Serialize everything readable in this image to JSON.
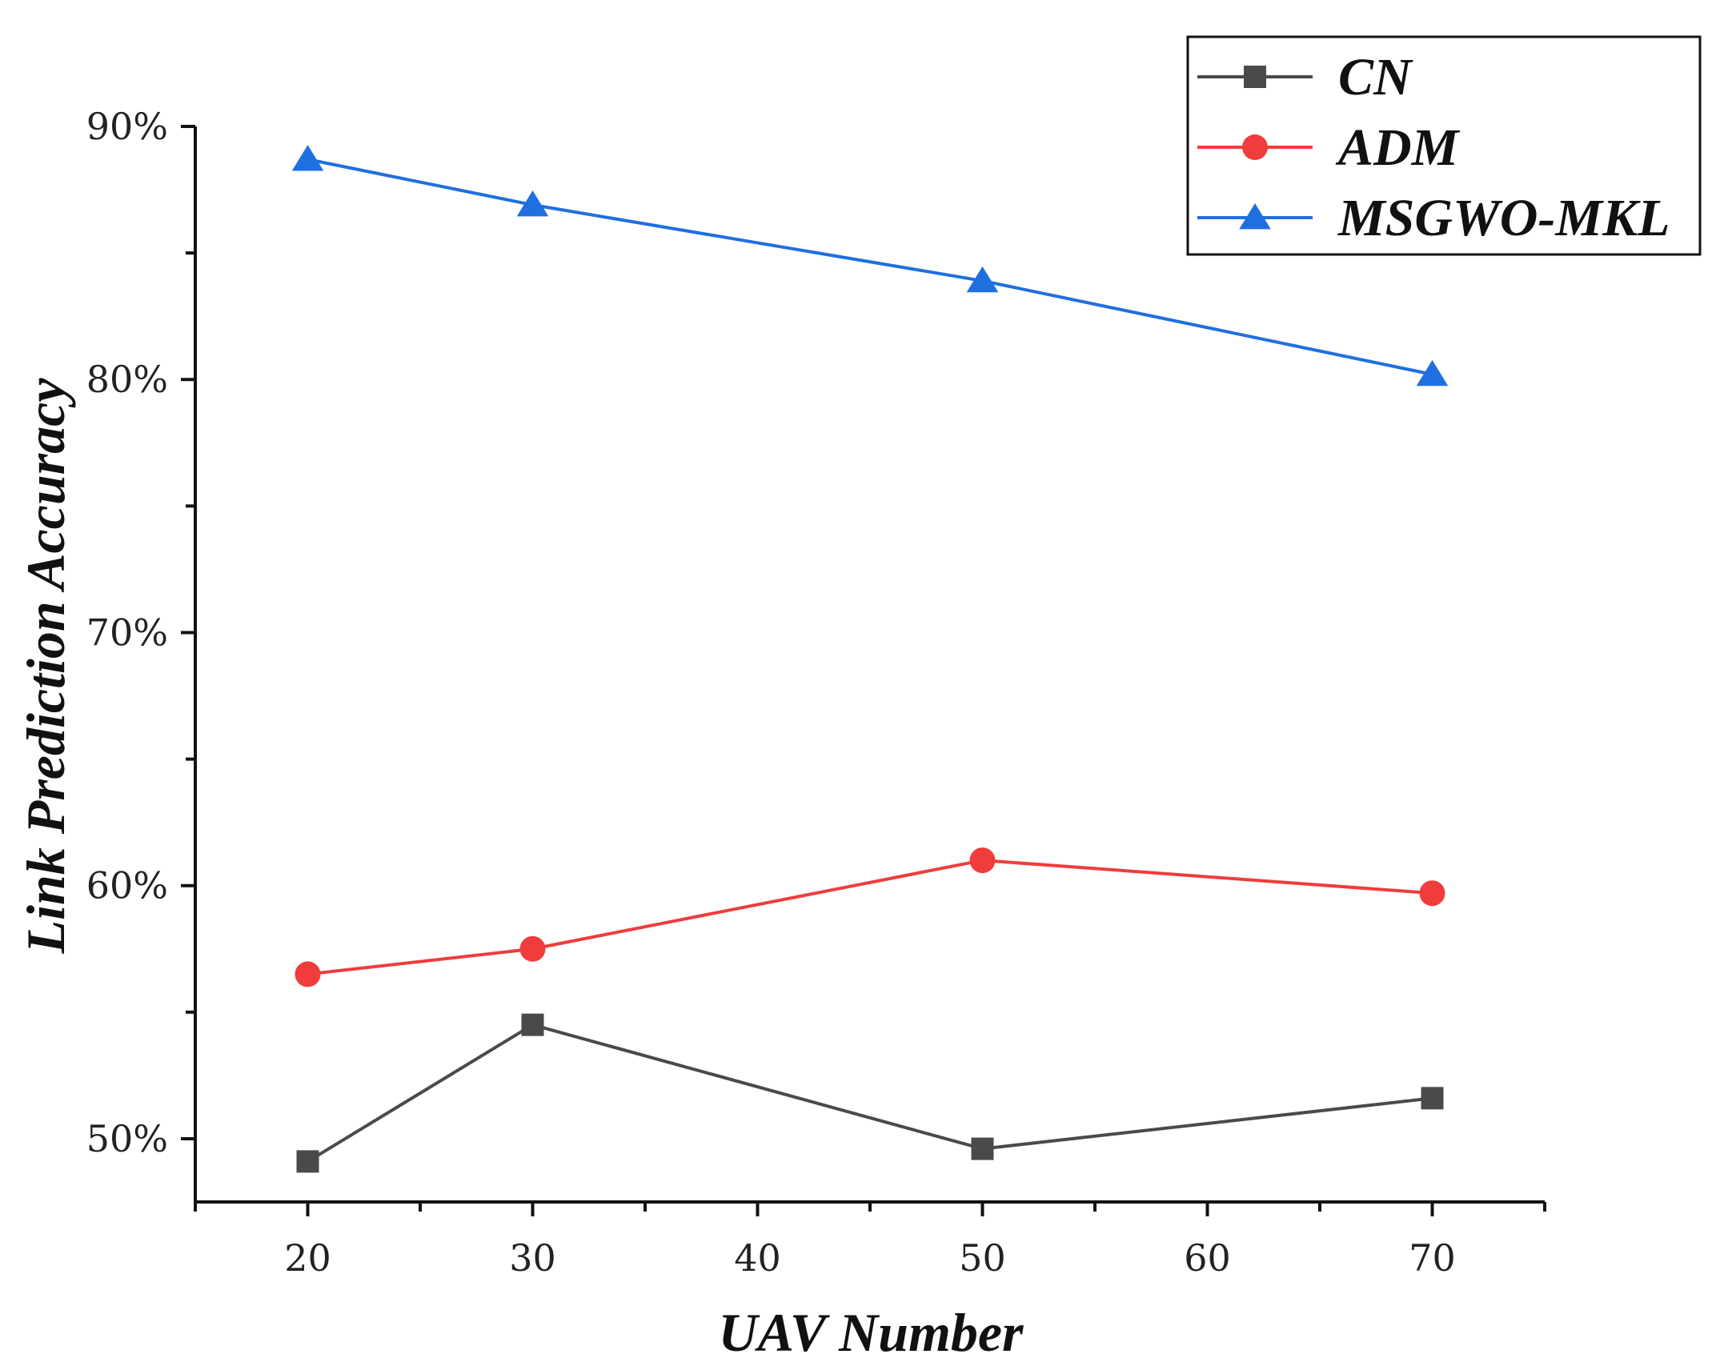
{
  "chart_data": {
    "type": "line",
    "title": "",
    "xlabel": "UAV Number",
    "ylabel": "Link Prediction Accuracy",
    "x": [
      20,
      30,
      50,
      70
    ],
    "xlim": [
      15,
      75
    ],
    "xticks": [
      20,
      30,
      40,
      50,
      60,
      70
    ],
    "xtick_labels": [
      "20",
      "30",
      "40",
      "50",
      "60",
      "70"
    ],
    "ylim": [
      47.5,
      90
    ],
    "yticks": [
      50,
      60,
      70,
      80,
      90
    ],
    "ytick_labels": [
      "50%",
      "60%",
      "70%",
      "80%",
      "90%"
    ],
    "grid": false,
    "legend_position": "top-right",
    "series": [
      {
        "name": "CN",
        "values": [
          49.1,
          54.5,
          49.6,
          51.6
        ],
        "color": "#4a4a4a",
        "marker": "square"
      },
      {
        "name": "ADM",
        "values": [
          56.5,
          57.5,
          61.0,
          59.7
        ],
        "color": "#f03c3c",
        "marker": "circle"
      },
      {
        "name": "MSGWO-MKL",
        "values": [
          88.7,
          86.9,
          83.9,
          80.2
        ],
        "color": "#1f6fe0",
        "marker": "triangle"
      }
    ]
  }
}
